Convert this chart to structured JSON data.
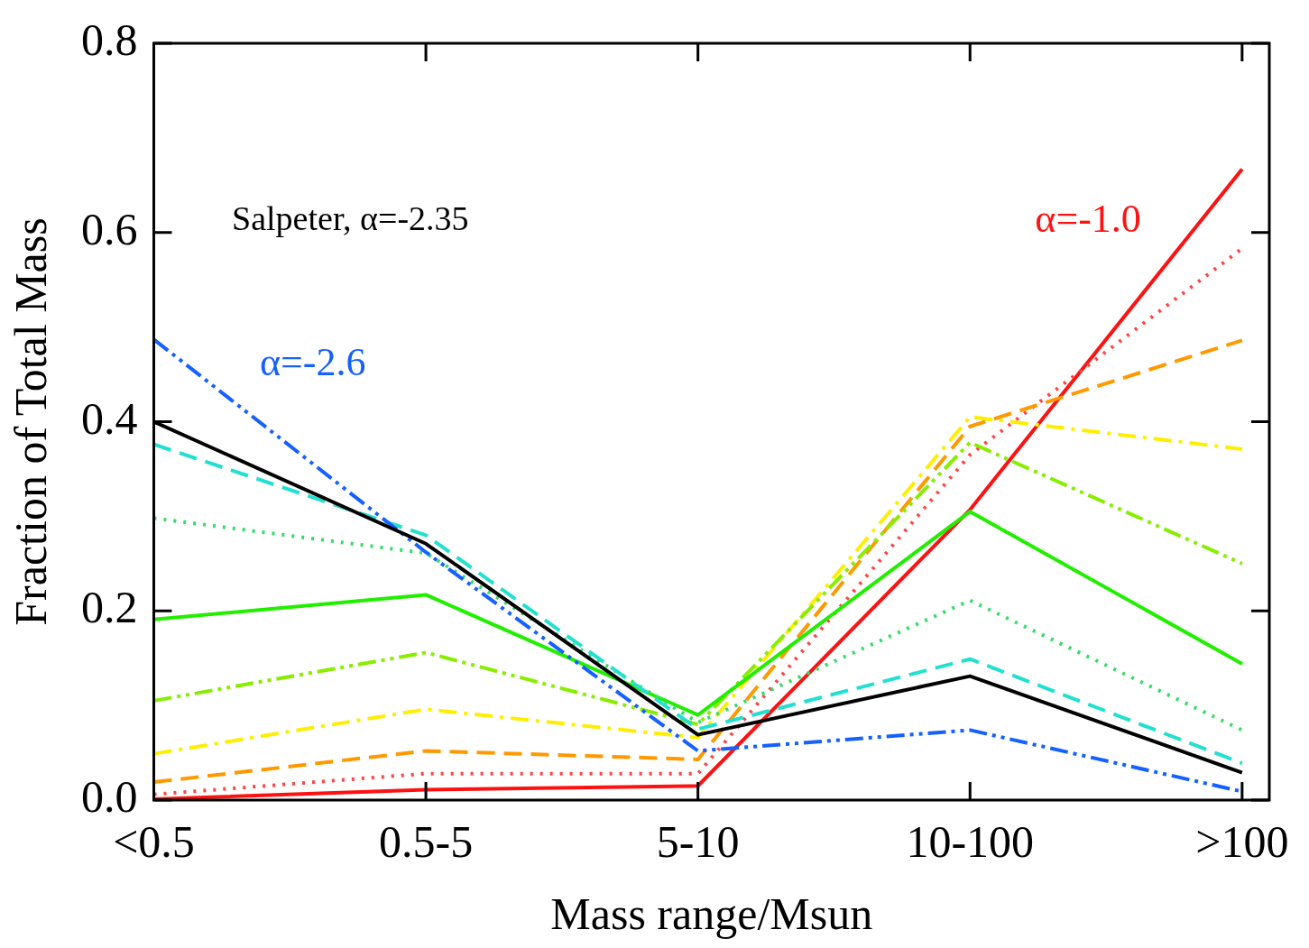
{
  "chart_data": {
    "type": "line",
    "xlabel": "Mass range/Msun",
    "ylabel": "Fraction of Total Mass",
    "categories": [
      "<0.5",
      "0.5-5",
      "5-10",
      "10-100",
      ">100"
    ],
    "ylim": [
      0,
      0.8
    ],
    "yticks": [
      {
        "value": 0,
        "label": "0.0"
      },
      0.2,
      0.4,
      0.6,
      0.8
    ],
    "marker": "none",
    "series": [
      {
        "name": "Salpeter, α=-2.35",
        "color": "#000000",
        "line_style": "solid",
        "values": [
          0.4,
          0.271,
          0.069,
          0.131,
          0.029
        ]
      },
      {
        "name": "α=-2.6",
        "color": "#1560ff",
        "line_style": "dashdotdot",
        "values": [
          0.487,
          0.262,
          0.052,
          0.074,
          0.009
        ]
      },
      {
        "color": "#22e0d0",
        "line_style": "dashed",
        "values": [
          0.376,
          0.28,
          0.075,
          0.149,
          0.039
        ]
      },
      {
        "color": "#33dd66",
        "line_style": "dotted",
        "values": [
          0.298,
          0.261,
          0.082,
          0.211,
          0.074
        ]
      },
      {
        "color": "#22ee00",
        "line_style": "solid",
        "values": [
          0.191,
          0.217,
          0.09,
          0.305,
          0.144
        ]
      },
      {
        "color": "#88ee00",
        "line_style": "dashdotdot",
        "values": [
          0.105,
          0.156,
          0.08,
          0.378,
          0.25
        ]
      },
      {
        "color": "#ffee00",
        "line_style": "dashdot",
        "values": [
          0.049,
          0.096,
          0.066,
          0.405,
          0.371
        ]
      },
      {
        "color": "#ff9900",
        "line_style": "dashed",
        "values": [
          0.019,
          0.052,
          0.043,
          0.395,
          0.486
        ]
      },
      {
        "color": "#ff4444",
        "line_style": "dotted",
        "values": [
          0.006,
          0.028,
          0.028,
          0.365,
          0.583
        ]
      },
      {
        "name": "α=-1.0",
        "color": "#ff1111",
        "line_style": "solid",
        "values": [
          0.001,
          0.011,
          0.015,
          0.307,
          0.667
        ]
      }
    ]
  }
}
